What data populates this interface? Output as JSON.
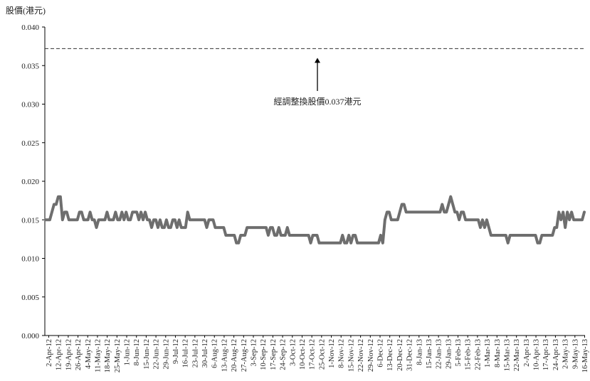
{
  "chart_data": {
    "type": "line",
    "title": "",
    "xlabel": "",
    "ylabel": "股價(港元)",
    "ylim": [
      0,
      0.04
    ],
    "y_ticks": [
      "0.000",
      "0.005",
      "0.010",
      "0.015",
      "0.020",
      "0.025",
      "0.030",
      "0.035",
      "0.040"
    ],
    "grid": false,
    "legend": "none",
    "x_tick_labels": [
      "2-Apr-12",
      "12-Apr-12",
      "19-Apr-12",
      "26-Apr-12",
      "4-May-12",
      "11-May-12",
      "18-May-12",
      "25-May-12",
      "1-Jun-12",
      "8-Jun-12",
      "15-Jun-12",
      "22-Jun-12",
      "29-Jun-12",
      "9-Jul-12",
      "16-Jul-12",
      "23-Jul-12",
      "30-Jul-12",
      "6-Aug-12",
      "13-Aug-12",
      "20-Aug-12",
      "27-Aug-12",
      "3-Sep-12",
      "10-Sep-12",
      "17-Sep-12",
      "24-Sep-12",
      "3-Oct-12",
      "10-Oct-12",
      "17-Oct-12",
      "25-Oct-12",
      "1-Nov-12",
      "8-Nov-12",
      "15-Nov-12",
      "22-Nov-12",
      "29-Nov-12",
      "6-Dec-12",
      "13-Dec-12",
      "20-Dec-12",
      "31-Dec-12",
      "8-Jan-13",
      "15-Jan-13",
      "22-Jan-13",
      "29-Jan-13",
      "5-Feb-13",
      "15-Feb-13",
      "22-Feb-13",
      "1-Mar-13",
      "8-Mar-13",
      "15-Mar-13",
      "22-Mar-13",
      "2-Apr-13",
      "10-Apr-13",
      "17-Apr-13",
      "24-Apr-13",
      "2-May-13",
      "9-May-13",
      "16-May-13"
    ],
    "series": [
      {
        "values": [
          0.015,
          0.015,
          0.015,
          0.016,
          0.017,
          0.017,
          0.018,
          0.018,
          0.015,
          0.016,
          0.016,
          0.015,
          0.015,
          0.015,
          0.015,
          0.015,
          0.016,
          0.016,
          0.015,
          0.015,
          0.015,
          0.016,
          0.015,
          0.015,
          0.014,
          0.015,
          0.015,
          0.015,
          0.015,
          0.016,
          0.015,
          0.015,
          0.015,
          0.016,
          0.015,
          0.015,
          0.016,
          0.015,
          0.016,
          0.015,
          0.015,
          0.016,
          0.016,
          0.016,
          0.015,
          0.016,
          0.015,
          0.016,
          0.015,
          0.015,
          0.014,
          0.015,
          0.015,
          0.014,
          0.015,
          0.014,
          0.014,
          0.015,
          0.014,
          0.014,
          0.015,
          0.015,
          0.014,
          0.015,
          0.014,
          0.014,
          0.014,
          0.016,
          0.015,
          0.015,
          0.015,
          0.015,
          0.015,
          0.015,
          0.015,
          0.015,
          0.014,
          0.015,
          0.015,
          0.015,
          0.014,
          0.014,
          0.014,
          0.014,
          0.014,
          0.013,
          0.013,
          0.013,
          0.013,
          0.013,
          0.012,
          0.012,
          0.013,
          0.013,
          0.013,
          0.014,
          0.014,
          0.014,
          0.014,
          0.014,
          0.014,
          0.014,
          0.014,
          0.014,
          0.014,
          0.013,
          0.014,
          0.014,
          0.013,
          0.013,
          0.014,
          0.013,
          0.013,
          0.013,
          0.014,
          0.013,
          0.013,
          0.013,
          0.013,
          0.013,
          0.013,
          0.013,
          0.013,
          0.013,
          0.013,
          0.012,
          0.013,
          0.013,
          0.013,
          0.012,
          0.012,
          0.012,
          0.012,
          0.012,
          0.012,
          0.012,
          0.012,
          0.012,
          0.012,
          0.012,
          0.013,
          0.012,
          0.012,
          0.013,
          0.012,
          0.013,
          0.013,
          0.012,
          0.012,
          0.012,
          0.012,
          0.012,
          0.012,
          0.012,
          0.012,
          0.012,
          0.012,
          0.012,
          0.013,
          0.012,
          0.015,
          0.016,
          0.016,
          0.015,
          0.015,
          0.015,
          0.015,
          0.016,
          0.017,
          0.017,
          0.016,
          0.016,
          0.016,
          0.016,
          0.016,
          0.016,
          0.016,
          0.016,
          0.016,
          0.016,
          0.016,
          0.016,
          0.016,
          0.016,
          0.016,
          0.016,
          0.016,
          0.017,
          0.016,
          0.016,
          0.017,
          0.018,
          0.017,
          0.016,
          0.016,
          0.015,
          0.016,
          0.016,
          0.015,
          0.015,
          0.015,
          0.015,
          0.015,
          0.015,
          0.015,
          0.014,
          0.015,
          0.014,
          0.015,
          0.014,
          0.013,
          0.013,
          0.013,
          0.013,
          0.013,
          0.013,
          0.013,
          0.013,
          0.012,
          0.013,
          0.013,
          0.013,
          0.013,
          0.013,
          0.013,
          0.013,
          0.013,
          0.013,
          0.013,
          0.013,
          0.013,
          0.013,
          0.012,
          0.012,
          0.013,
          0.013,
          0.013,
          0.013,
          0.013,
          0.013,
          0.014,
          0.014,
          0.016,
          0.015,
          0.016,
          0.014,
          0.016,
          0.015,
          0.016,
          0.015,
          0.015,
          0.015,
          0.015,
          0.015,
          0.016
        ],
        "color": "#6e6e6e"
      }
    ],
    "reference_line": {
      "value": 0.0372,
      "color": "#333333"
    },
    "annotation": {
      "text": "經調整換股價0.037港元"
    }
  }
}
